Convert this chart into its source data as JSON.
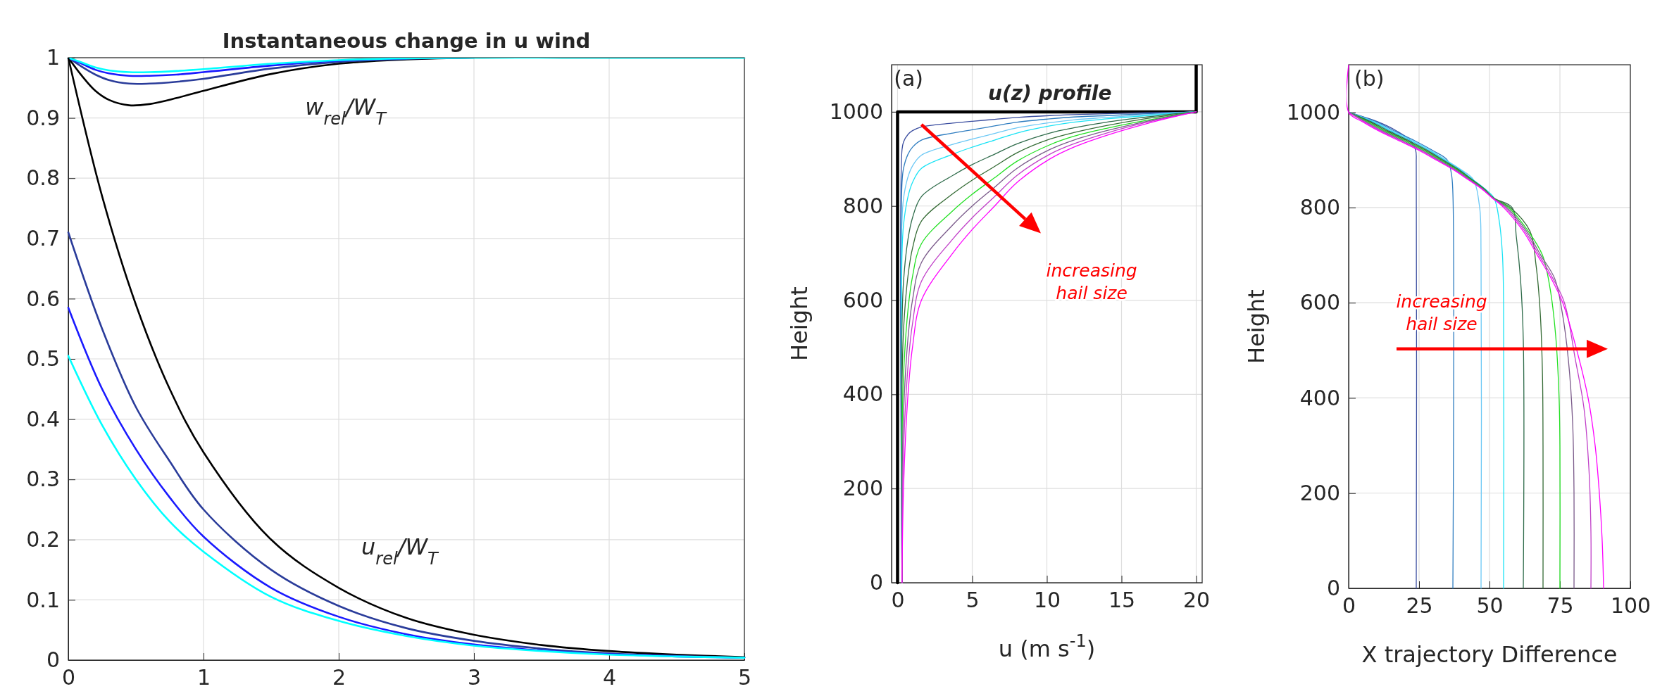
{
  "chart_data": [
    {
      "type": "line",
      "title": "Instantaneous change in u wind",
      "xlim": [
        0,
        5
      ],
      "ylim": [
        0,
        1
      ],
      "xticks": [
        0,
        1,
        2,
        3,
        4,
        5
      ],
      "yticks": [
        0,
        0.1,
        0.2,
        0.3,
        0.4,
        0.5,
        0.6,
        0.7,
        0.8,
        0.9,
        1
      ],
      "grid": true,
      "annotations": [
        "w$_{rel}$/W$_{T}$",
        "u$_{rel}$/W$_{T}$"
      ],
      "series": [
        {
          "color": "#000000",
          "x": [
            0,
            0.1,
            0.2,
            0.3,
            0.45,
            0.6,
            0.8,
            1,
            1.5,
            2,
            2.5,
            3,
            4,
            5
          ],
          "values": [
            1,
            0.97,
            0.945,
            0.93,
            0.921,
            0.923,
            0.933,
            0.945,
            0.973,
            0.99,
            0.997,
            1,
            1,
            1
          ]
        },
        {
          "color": "#2a3c9a",
          "x": [
            0,
            0.1,
            0.2,
            0.3,
            0.45,
            0.6,
            0.8,
            1,
            1.5,
            2,
            2.5,
            3
          ],
          "values": [
            1,
            0.985,
            0.972,
            0.963,
            0.957,
            0.957,
            0.96,
            0.965,
            0.982,
            0.993,
            0.998,
            1
          ]
        },
        {
          "color": "#1a1aff",
          "x": [
            0,
            0.1,
            0.2,
            0.3,
            0.45,
            0.6,
            0.8,
            1,
            1.5,
            2,
            2.5
          ],
          "values": [
            1,
            0.99,
            0.98,
            0.974,
            0.97,
            0.97,
            0.972,
            0.976,
            0.987,
            0.995,
            0.999
          ]
        },
        {
          "color": "#00ffff",
          "x": [
            0,
            0.1,
            0.2,
            0.3,
            0.45,
            0.6,
            0.8,
            1,
            1.5,
            2,
            2.5,
            3,
            4,
            5
          ],
          "values": [
            1,
            0.992,
            0.984,
            0.979,
            0.976,
            0.976,
            0.978,
            0.981,
            0.99,
            0.996,
            0.999,
            1,
            1,
            1
          ]
        },
        {
          "color": "#000000",
          "x": [
            0,
            0.25,
            0.5,
            0.75,
            1,
            1.5,
            2,
            2.5,
            3,
            3.5,
            4,
            4.5,
            5
          ],
          "values": [
            1,
            0.77,
            0.59,
            0.45,
            0.345,
            0.2,
            0.12,
            0.07,
            0.042,
            0.025,
            0.015,
            0.009,
            0.005
          ]
        },
        {
          "color": "#2a3c9a",
          "x": [
            0,
            0.25,
            0.5,
            0.75,
            1,
            1.5,
            2,
            2.5,
            3,
            3.5,
            4,
            4.5,
            5
          ],
          "values": [
            0.71,
            0.55,
            0.42,
            0.33,
            0.25,
            0.15,
            0.09,
            0.053,
            0.032,
            0.019,
            0.011,
            0.007,
            0.004
          ]
        },
        {
          "color": "#1a1aff",
          "x": [
            0,
            0.25,
            0.5,
            0.75,
            1,
            1.5,
            2,
            2.5,
            3,
            3.5,
            4,
            4.5,
            5
          ],
          "values": [
            0.585,
            0.45,
            0.35,
            0.27,
            0.205,
            0.12,
            0.072,
            0.043,
            0.026,
            0.016,
            0.01,
            0.006,
            0.004
          ]
        },
        {
          "color": "#00ffff",
          "x": [
            0,
            0.25,
            0.5,
            0.75,
            1,
            1.5,
            2,
            2.5,
            3,
            3.5,
            4,
            4.5,
            5
          ],
          "values": [
            0.505,
            0.39,
            0.3,
            0.23,
            0.18,
            0.105,
            0.065,
            0.04,
            0.024,
            0.015,
            0.009,
            0.006,
            0.004
          ]
        }
      ]
    },
    {
      "type": "line",
      "xlabel": "u (m s$^{-1}$)",
      "ylabel": "Height",
      "xlim": [
        -0.4,
        20.4
      ],
      "ylim": [
        0,
        1100
      ],
      "xticks": [
        0,
        5,
        10,
        15,
        20
      ],
      "yticks": [
        0,
        200,
        400,
        600,
        800,
        1000
      ],
      "grid": true,
      "annotations": [
        "(a)",
        "u(z) profile",
        "increasing hail size"
      ],
      "series": [
        {
          "color": "#000000",
          "x": [
            0,
            0,
            20,
            20
          ],
          "values": [
            0,
            1000,
            1000,
            1100
          ]
        },
        {
          "color": "#3b4ea0",
          "x": [
            20,
            18.6,
            16.7,
            14,
            11.8,
            10.2,
            8,
            6.5,
            5,
            3.7,
            1.6,
            1.0,
            0.7,
            0.4,
            0.3,
            0.3
          ],
          "values": [
            1000,
            999,
            998,
            996,
            994,
            992,
            988,
            984,
            980,
            976,
            968,
            960,
            952,
            936,
            920,
            0
          ]
        },
        {
          "color": "#2f7dc0",
          "x": [
            20,
            18.6,
            16.7,
            14,
            11.8,
            10.2,
            8,
            6.5,
            5,
            3.7,
            1.6,
            1.0,
            0.7,
            0.4,
            0.3,
            0.3
          ],
          "values": [
            1000,
            998,
            996,
            992,
            989,
            985,
            978,
            970,
            962,
            955,
            940,
            925,
            910,
            880,
            850,
            0
          ]
        },
        {
          "color": "#6cc8f5",
          "x": [
            20,
            18.6,
            16.7,
            14,
            11.8,
            10.2,
            8,
            6.5,
            5,
            3.7,
            1.6,
            1.0,
            0.7,
            0.4,
            0.3,
            0.3
          ],
          "values": [
            1000,
            998,
            994,
            988,
            983,
            977,
            966,
            954,
            942,
            931,
            908,
            885,
            862,
            816,
            770,
            0
          ]
        },
        {
          "color": "#19e3f5",
          "x": [
            20,
            18.6,
            16.7,
            14,
            11.8,
            10.2,
            8,
            6.5,
            5,
            3.7,
            1.6,
            1.0,
            0.7,
            0.4,
            0.3,
            0.3
          ],
          "values": [
            1000,
            997,
            992,
            985,
            978,
            970,
            955,
            940,
            925,
            910,
            880,
            850,
            820,
            760,
            700,
            0
          ]
        },
        {
          "color": "#2e6b4a",
          "x": [
            20,
            18.6,
            16.7,
            14,
            11.8,
            10.2,
            8,
            6.5,
            5,
            3.7,
            1.6,
            1.0,
            0.7,
            0.4,
            0.3,
            0.3
          ],
          "values": [
            1000,
            996,
            989,
            978,
            966,
            955,
            932,
            910,
            888,
            865,
            820,
            775,
            730,
            640,
            550,
            0
          ]
        },
        {
          "color": "#356b35",
          "x": [
            20,
            18.6,
            16.7,
            14,
            11.8,
            10.2,
            8,
            6.5,
            5,
            3.7,
            1.6,
            1.0,
            0.7,
            0.4,
            0.3,
            0.3
          ],
          "values": [
            1000,
            994,
            986,
            971,
            956,
            942,
            913,
            884,
            855,
            826,
            768,
            710,
            652,
            536,
            420,
            0
          ]
        },
        {
          "color": "#22e022",
          "x": [
            20,
            18.6,
            16.7,
            14,
            11.8,
            10.2,
            8,
            6.5,
            5,
            3.7,
            1.6,
            1.0,
            0.7,
            0.4,
            0.3,
            0.3
          ],
          "values": [
            1000,
            993,
            982,
            965,
            948,
            930,
            895,
            860,
            825,
            790,
            720,
            650,
            580,
            440,
            300,
            0
          ]
        },
        {
          "color": "#7a5a8a",
          "x": [
            20,
            18.6,
            16.7,
            14,
            11.8,
            10.2,
            8,
            6.5,
            5,
            3.7,
            1.6,
            1.0,
            0.7,
            0.4,
            0.3,
            0.3
          ],
          "values": [
            1000,
            992,
            980,
            960,
            940,
            920,
            880,
            840,
            800,
            760,
            680,
            600,
            520,
            360,
            200,
            0
          ]
        },
        {
          "color": "#c040c8",
          "x": [
            20,
            18.6,
            16.7,
            14,
            11.8,
            10.2,
            8,
            6.5,
            5,
            3.7,
            1.6,
            1.0,
            0.7,
            0.4,
            0.3,
            0.3
          ],
          "values": [
            1000,
            991,
            978,
            955,
            932,
            910,
            865,
            820,
            775,
            730,
            640,
            550,
            460,
            280,
            100,
            0
          ]
        },
        {
          "color": "#ff00ff",
          "x": [
            20,
            18.6,
            16.7,
            14,
            11.8,
            10.2,
            8,
            6.5,
            5,
            3.7,
            1.6,
            1.0,
            0.7,
            0.4,
            0.3
          ],
          "values": [
            1000,
            990,
            975,
            950,
            925,
            900,
            850,
            800,
            750,
            700,
            600,
            500,
            400,
            200,
            0
          ]
        }
      ]
    },
    {
      "type": "line",
      "xlabel": "X trajectory Difference",
      "ylabel": "Height",
      "xlim": [
        0,
        100
      ],
      "ylim": [
        0,
        1100
      ],
      "xticks": [
        0,
        25,
        50,
        75,
        100
      ],
      "yticks": [
        0,
        200,
        400,
        600,
        800,
        1000
      ],
      "grid": true,
      "annotations": [
        "(b)",
        "increasing hail size"
      ],
      "series": [
        {
          "color": "#3b4ea0",
          "x": [
            0,
            10.4,
            17.3,
            22,
            23.8,
            24,
            24
          ],
          "values": [
            1000,
            980,
            960,
            940,
            920,
            890,
            0
          ]
        },
        {
          "color": "#2f7dc0",
          "x": [
            0,
            9.8,
            16.6,
            23.6,
            29.8,
            35,
            36.5,
            37,
            37
          ],
          "values": [
            1000,
            980,
            960,
            940,
            920,
            900,
            870,
            830,
            0
          ]
        },
        {
          "color": "#6cc8f5",
          "x": [
            0,
            9.2,
            15.9,
            22.9,
            29.2,
            34.5,
            39.8,
            44.1,
            46.5,
            47,
            47
          ],
          "values": [
            1000,
            980,
            960,
            940,
            920,
            900,
            880,
            860,
            800,
            700,
            0
          ]
        },
        {
          "color": "#19e3f5",
          "x": [
            0,
            8.6,
            15.2,
            22.2,
            28.6,
            34,
            39.4,
            43.8,
            48.2,
            51.6,
            53.5,
            54.6,
            55,
            55
          ],
          "values": [
            1000,
            980,
            960,
            940,
            920,
            900,
            880,
            860,
            840,
            820,
            770,
            700,
            600,
            0
          ]
        },
        {
          "color": "#2e6b4a",
          "x": [
            0,
            8,
            14.5,
            21.5,
            28,
            33.5,
            39,
            43.5,
            48,
            51.5,
            58,
            59.5,
            61,
            62,
            62
          ],
          "values": [
            1000,
            980,
            960,
            940,
            920,
            900,
            880,
            860,
            840,
            820,
            800,
            740,
            650,
            520,
            0
          ]
        },
        {
          "color": "#356b35",
          "x": [
            0,
            7.4,
            13.8,
            20.8,
            27.4,
            33,
            38.6,
            43.2,
            47.8,
            51.4,
            57.4,
            64.4,
            66.5,
            68,
            68.8,
            69,
            69
          ],
          "values": [
            1000,
            980,
            960,
            940,
            920,
            900,
            880,
            860,
            840,
            820,
            800,
            750,
            680,
            580,
            450,
            300,
            0
          ]
        },
        {
          "color": "#22e022",
          "x": [
            0,
            6.8,
            13.1,
            20.1,
            26.8,
            32.5,
            38.2,
            42.9,
            47.6,
            51.3,
            56.8,
            63.8,
            68.8,
            71.5,
            73.5,
            74.7,
            75,
            75
          ],
          "values": [
            1000,
            980,
            960,
            940,
            920,
            900,
            880,
            860,
            840,
            820,
            800,
            750,
            700,
            630,
            530,
            400,
            300,
            0
          ]
        },
        {
          "color": "#7a5a8a",
          "x": [
            0,
            6.2,
            12.4,
            19.4,
            26.2,
            32,
            37.8,
            42.6,
            47.4,
            51.2,
            56.2,
            63.2,
            68.2,
            73.2,
            75.8,
            78,
            79.5,
            80,
            80
          ],
          "values": [
            1000,
            980,
            960,
            940,
            920,
            900,
            880,
            860,
            840,
            820,
            800,
            750,
            700,
            650,
            580,
            480,
            350,
            200,
            0
          ]
        },
        {
          "color": "#c040c8",
          "x": [
            0,
            5.6,
            11.7,
            18.7,
            25.6,
            31.5,
            37.4,
            42.3,
            47.2,
            51.1,
            55.6,
            62.6,
            67.6,
            72.6,
            76.6,
            80.5,
            83.5,
            85.3,
            86,
            86
          ],
          "values": [
            1000,
            980,
            960,
            940,
            920,
            900,
            880,
            860,
            840,
            820,
            800,
            750,
            700,
            650,
            600,
            480,
            380,
            250,
            120,
            0
          ]
        },
        {
          "color": "#ff00ff",
          "x": [
            0,
            0,
            5,
            11,
            18,
            25,
            31,
            37,
            42,
            47,
            51,
            55,
            62,
            67,
            72,
            76,
            81,
            85,
            87.5,
            89,
            90,
            90.5
          ],
          "values": [
            1100,
            1000,
            980,
            960,
            940,
            920,
            900,
            880,
            860,
            840,
            820,
            800,
            750,
            700,
            650,
            600,
            500,
            400,
            300,
            200,
            100,
            0
          ]
        }
      ]
    }
  ]
}
